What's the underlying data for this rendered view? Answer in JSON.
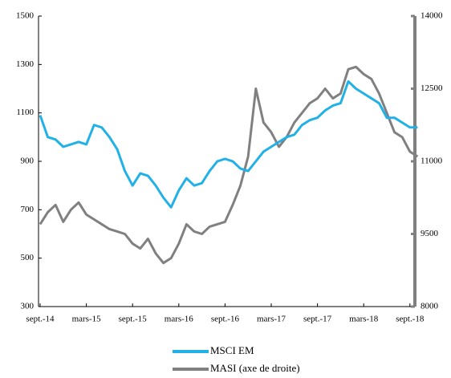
{
  "chart_data": {
    "type": "line",
    "categories": [
      "sept.-14",
      null,
      null,
      null,
      null,
      null,
      "mars-15",
      null,
      null,
      null,
      null,
      null,
      "sept.-15",
      null,
      null,
      null,
      null,
      null,
      "mars-16",
      null,
      null,
      null,
      null,
      null,
      "sept.-16",
      null,
      null,
      null,
      null,
      null,
      "mars-17",
      null,
      null,
      null,
      null,
      null,
      "sept.-17",
      null,
      null,
      null,
      null,
      null,
      "mars-18",
      null,
      null,
      null,
      null,
      null,
      "sept.-18",
      null
    ],
    "series": [
      {
        "name": "MSCI EM",
        "color": "#21b1e6",
        "values": [
          1090,
          1000,
          990,
          960,
          970,
          980,
          970,
          1050,
          1040,
          1000,
          950,
          860,
          800,
          850,
          840,
          800,
          750,
          710,
          780,
          830,
          800,
          810,
          860,
          900,
          910,
          900,
          870,
          860,
          900,
          940,
          960,
          980,
          1000,
          1010,
          1050,
          1070,
          1080,
          1110,
          1130,
          1140,
          1230,
          1200,
          1180,
          1160,
          1140,
          1080,
          1080,
          1060,
          1040,
          1040
        ]
      },
      {
        "name": "MASI (axe de droite)",
        "color": "#808080",
        "axis": "y2",
        "values": [
          9700,
          9950,
          10100,
          9750,
          10000,
          10150,
          9900,
          9800,
          9700,
          9600,
          9550,
          9500,
          9300,
          9200,
          9400,
          9100,
          8900,
          9000,
          9300,
          9700,
          9550,
          9500,
          9650,
          9700,
          9750,
          10100,
          10500,
          11100,
          12500,
          11800,
          11600,
          11300,
          11500,
          11800,
          12000,
          12200,
          12300,
          12500,
          12300,
          12400,
          12900,
          12950,
          12800,
          12700,
          12400,
          12000,
          11600,
          11500,
          11200,
          11100
        ]
      }
    ],
    "ylim": [
      300,
      1500
    ],
    "yticks": [
      300,
      500,
      700,
      900,
      1100,
      1300,
      1500
    ],
    "y2lim": [
      8000,
      14000
    ],
    "y2ticks": [
      8000,
      9500,
      11000,
      12500,
      14000
    ],
    "legend": "bottom"
  }
}
